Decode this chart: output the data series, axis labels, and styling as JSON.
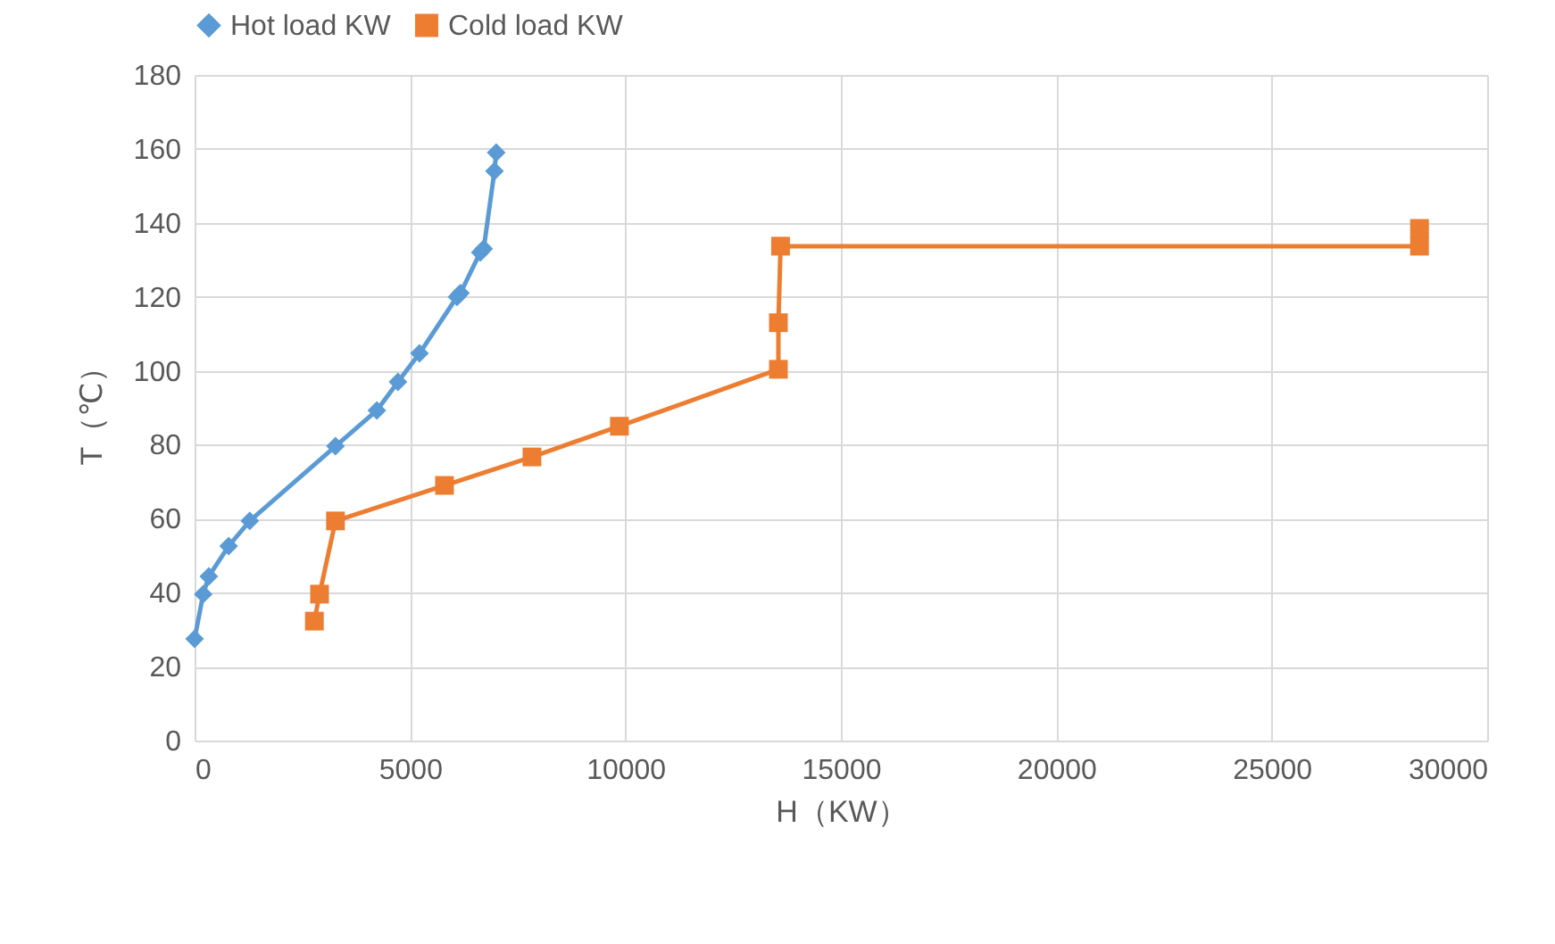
{
  "chart_data": {
    "type": "line",
    "xlabel": "H（KW）",
    "ylabel": "T（℃）",
    "xlim": [
      0,
      30000
    ],
    "xticks": [
      0,
      5000,
      10000,
      15000,
      20000,
      25000,
      30000
    ],
    "ylim": [
      0,
      180
    ],
    "yticks": [
      0,
      20,
      40,
      60,
      80,
      100,
      120,
      140,
      160,
      180
    ],
    "grid": true,
    "legend": "top",
    "series": [
      {
        "name": "Hot load KW",
        "color": "#5b9bd5",
        "marker": "diamond",
        "x": [
          0,
          200,
          330,
          790,
          1280,
          3270,
          4230,
          4720,
          5220,
          6090,
          6170,
          6630,
          6710,
          6960,
          7000
        ],
        "values": [
          27.5,
          39.6,
          44.4,
          52.6,
          59.4,
          79.6,
          89.3,
          97,
          104.7,
          120,
          121,
          132,
          133,
          154,
          159
        ]
      },
      {
        "name": "Cold load KW",
        "color": "#ed7d31",
        "marker": "square",
        "x": [
          2780,
          2900,
          3270,
          5800,
          7830,
          9860,
          13550,
          13550,
          13600,
          28430,
          28430
        ],
        "values": [
          32.3,
          39.6,
          59.4,
          69,
          76.7,
          85,
          100.4,
          113,
          133.7,
          133.7,
          138.5
        ]
      }
    ]
  }
}
